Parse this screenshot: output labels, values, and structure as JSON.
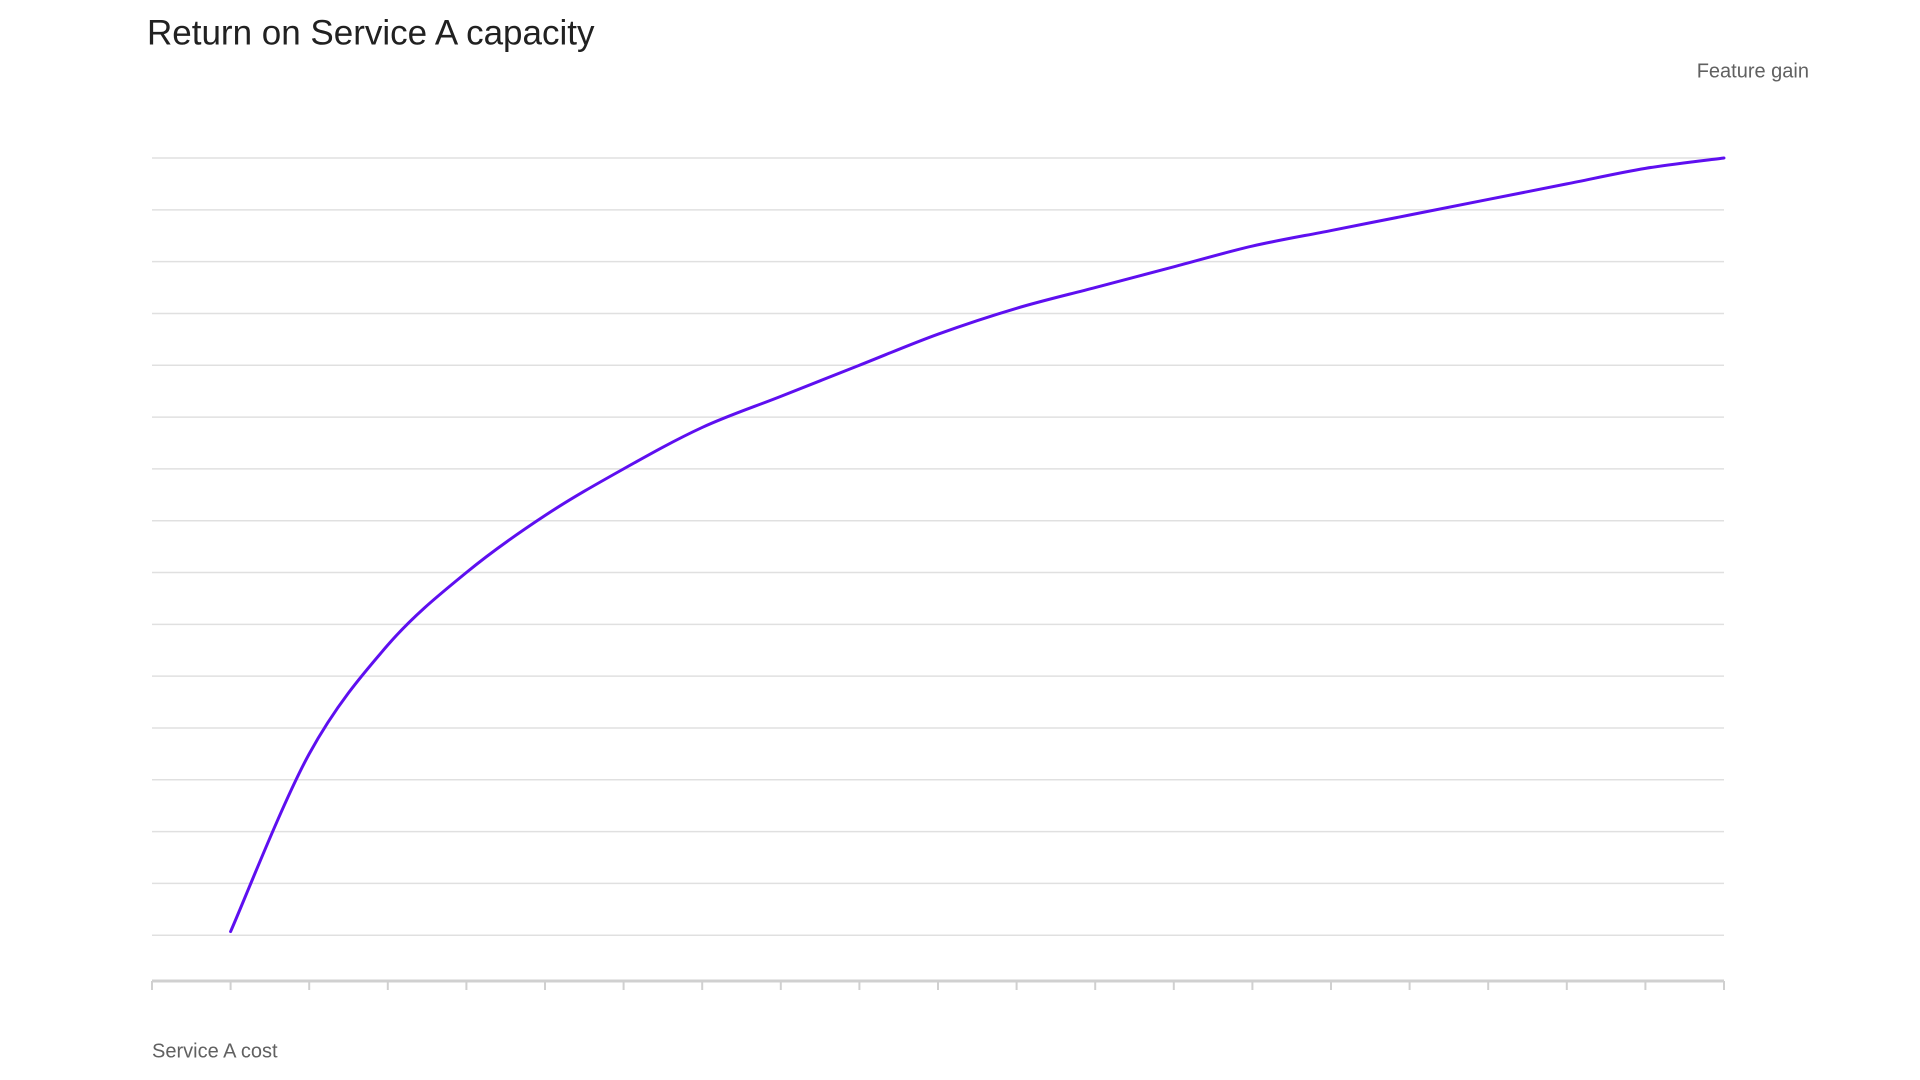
{
  "chart_data": {
    "type": "line",
    "title": "Return on Service A capacity",
    "y_axis_label": "Feature gain",
    "x_axis_label": "Service A cost",
    "x": [
      1,
      2,
      3,
      4,
      5,
      6,
      7,
      8,
      9,
      10,
      11,
      12,
      13,
      14,
      15,
      16,
      17,
      18,
      19,
      20
    ],
    "series": [
      {
        "color": "#5e0ff0",
        "values": [
          1.07,
          4.5,
          6.6,
          8.0,
          9.1,
          10.0,
          10.8,
          11.4,
          12.0,
          12.6,
          13.1,
          13.5,
          13.9,
          14.3,
          14.6,
          14.9,
          15.2,
          15.5,
          15.8,
          16.0
        ]
      }
    ],
    "xlim": [
      0,
      20
    ],
    "xticks": [
      0,
      1,
      2,
      3,
      4,
      5,
      6,
      7,
      8,
      9,
      10,
      11,
      12,
      13,
      14,
      15,
      16,
      17,
      18,
      19,
      20
    ],
    "ylim": [
      0,
      16
    ],
    "yticks": [
      1,
      2,
      3,
      4,
      5,
      6,
      7,
      8,
      9,
      10,
      11,
      12,
      13,
      14,
      15,
      16
    ],
    "grid": true,
    "tick_labels": false,
    "smooth": true
  }
}
